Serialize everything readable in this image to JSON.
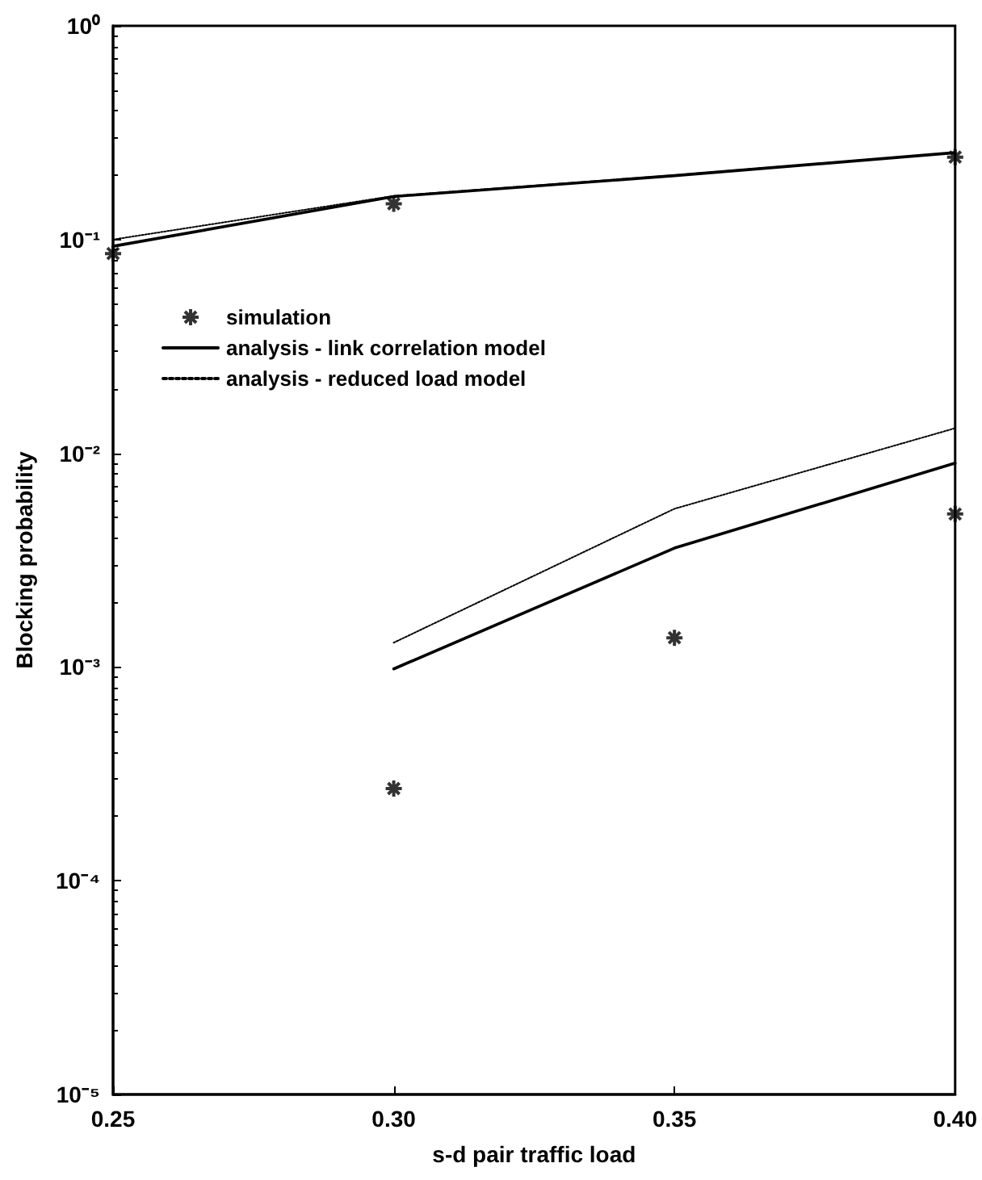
{
  "chart_data": {
    "type": "line",
    "xlabel": "s-d pair traffic load",
    "ylabel": "Blocking probability",
    "xlim": [
      0.25,
      0.4
    ],
    "xticks": [
      {
        "value": 0.25,
        "label": "0.25"
      },
      {
        "value": 0.3,
        "label": "0.30"
      },
      {
        "value": 0.35,
        "label": "0.35"
      },
      {
        "value": 0.4,
        "label": "0.40"
      }
    ],
    "ylim": [
      1e-05,
      1
    ],
    "yticks": [
      {
        "value": 1,
        "label": "10⁰"
      },
      {
        "value": 0.1,
        "label": "10⁻¹"
      },
      {
        "value": 0.01,
        "label": "10⁻²"
      },
      {
        "value": 0.001,
        "label": "10⁻³"
      },
      {
        "value": 0.0001,
        "label": "10⁻⁴"
      },
      {
        "value": 1e-05,
        "label": "10⁻⁵"
      }
    ],
    "log": "y",
    "grid": false,
    "legend": "left",
    "series": [
      {
        "name": "simulation",
        "type": "scatter",
        "marker": "cross",
        "color": "#000000",
        "x": [
          0.25,
          0.3,
          0.4,
          0.3,
          0.35,
          0.4
        ],
        "values": [
          0.086,
          0.147,
          0.243,
          0.00027,
          0.00137,
          0.0052
        ]
      },
      {
        "name": "analysis - link correlation model",
        "marker": "none",
        "line_style": "solid",
        "color": "#000000",
        "x": [
          0.25,
          0.3,
          0.35,
          0.4
        ],
        "values": [
          0.093,
          0.159,
          0.199,
          0.255
        ]
      },
      {
        "name": "analysis - reduced load model",
        "marker": "none",
        "line_style": "dotted",
        "color": "#000000",
        "x": [
          0.25,
          0.3,
          0.35,
          0.4
        ],
        "values": [
          0.1,
          0.16,
          0.2,
          0.255
        ]
      },
      {
        "marker": "none",
        "line_style": "solid",
        "color": "#000000",
        "x": [
          0.3,
          0.35,
          0.4
        ],
        "values": [
          0.00098,
          0.0036,
          0.009
        ]
      },
      {
        "marker": "none",
        "line_style": "dotted",
        "color": "#000000",
        "x": [
          0.3,
          0.35,
          0.4
        ],
        "values": [
          0.0013,
          0.0055,
          0.0131
        ]
      }
    ]
  }
}
